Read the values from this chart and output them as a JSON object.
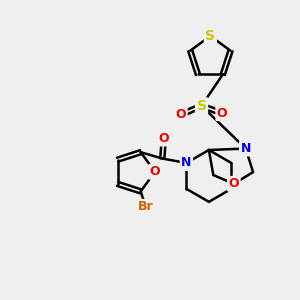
{
  "bg_color": "#efefef",
  "atom_colors": {
    "C": "#000000",
    "N": "#0000ee",
    "O": "#ee0000",
    "S_thio": "#cccc00",
    "S_sulfonyl": "#cccc00",
    "Br": "#cc6600"
  },
  "bond_color": "#000000",
  "bond_width": 1.8,
  "font_size_atom": 9
}
